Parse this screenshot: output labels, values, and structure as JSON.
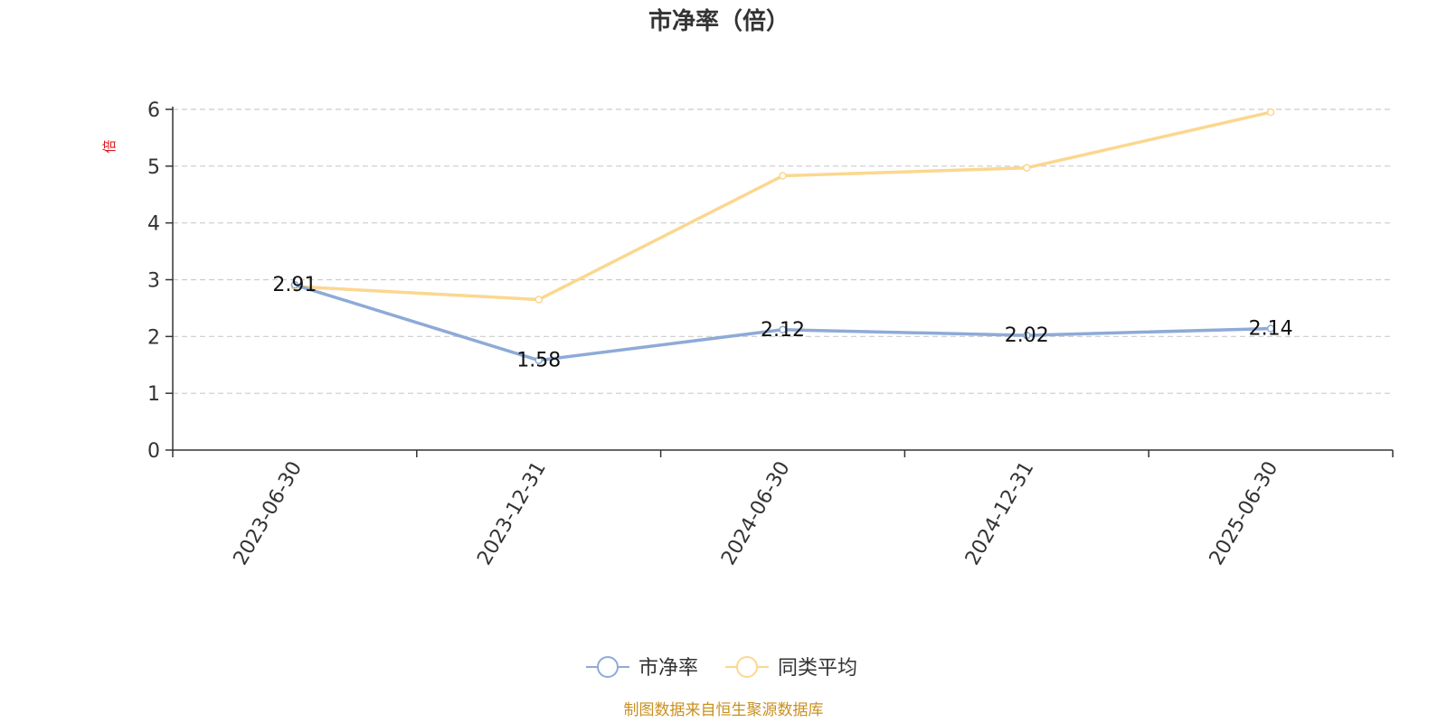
{
  "colors": {
    "series_pb": "#8eaad7",
    "series_avg": "#fbd78f",
    "ylabel": "#e0141b",
    "footer": "#c9901f",
    "grid": "#cccccc",
    "axis": "#333333"
  },
  "footer": "制图数据来自恒生聚源数据库",
  "chart_data": {
    "type": "line",
    "title": "市净率（倍）",
    "ylabel": "倍",
    "xlabel": "",
    "categories": [
      "2023-06-30",
      "2023-12-31",
      "2024-06-30",
      "2024-12-31",
      "2025-06-30"
    ],
    "ylim": [
      0,
      6
    ],
    "yticks": [
      0,
      1,
      2,
      3,
      4,
      5,
      6
    ],
    "grid": true,
    "legend_position": "bottom-center",
    "series": [
      {
        "name": "市净率",
        "values": [
          2.91,
          1.58,
          2.12,
          2.02,
          2.14
        ],
        "data_labels": [
          "2.91",
          "1.58",
          "2.12",
          "2.02",
          "2.14"
        ]
      },
      {
        "name": "同类平均",
        "values": [
          2.88,
          2.65,
          4.83,
          4.97,
          5.95
        ]
      }
    ]
  }
}
